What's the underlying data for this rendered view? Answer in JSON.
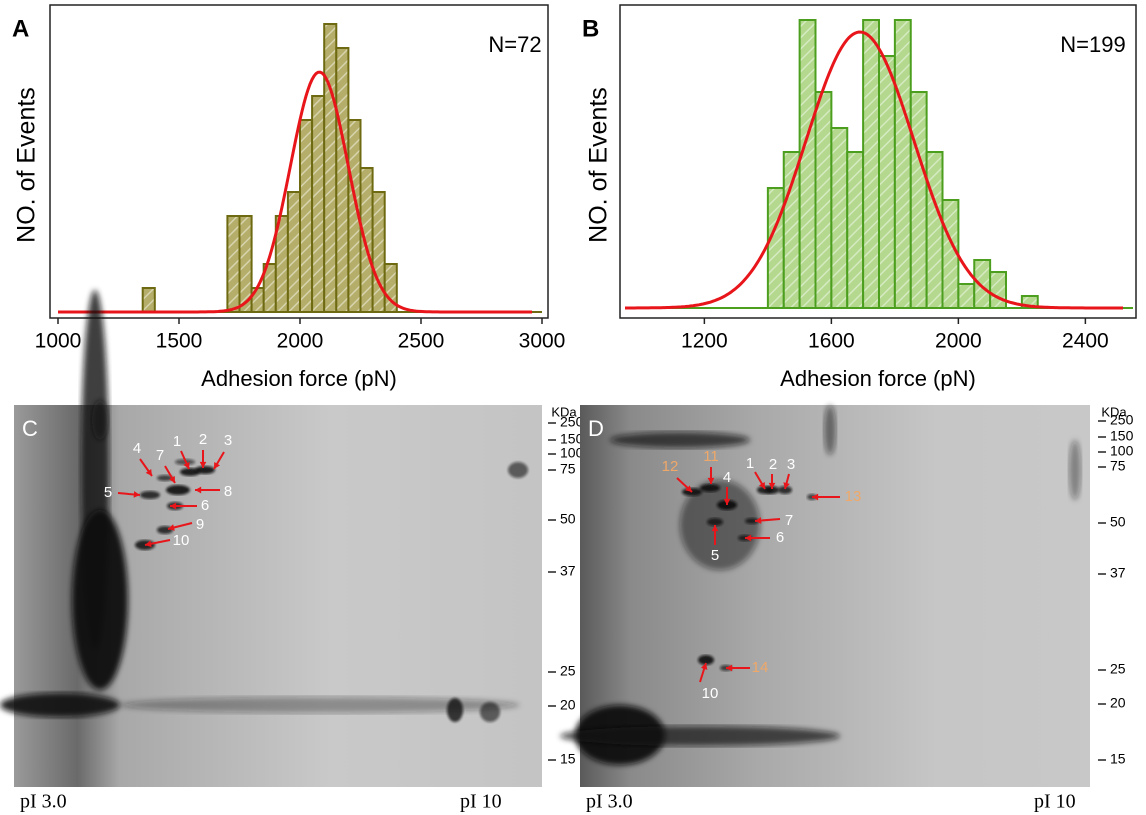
{
  "chart_data": [
    {
      "type": "histogram",
      "panel": "A",
      "annotation": "N=72",
      "x_label": "Adhesion force (pN)",
      "y_label": "NO. of Events",
      "bins": [
        1350,
        1400,
        1450,
        1500,
        1550,
        1600,
        1650,
        1700,
        1750,
        1800,
        1850,
        1900,
        1950,
        2000,
        2050,
        2100,
        2150,
        2200,
        2250,
        2300,
        2350,
        2400
      ],
      "values": [
        1,
        0,
        0,
        0,
        0,
        0,
        0,
        4,
        4,
        1,
        2,
        4,
        5,
        8,
        9,
        12,
        11,
        8,
        6,
        5,
        2
      ],
      "color": "#b5ae6a",
      "edge_color": "#6e6a12",
      "fit_color": "#e8161b",
      "fit": {
        "mean": 2080,
        "sd": 120,
        "peak": 10
      },
      "xlim": [
        1000,
        3000
      ],
      "xticks": [
        1000,
        1500,
        2000,
        2500,
        3000
      ],
      "ylim": [
        0,
        12.5
      ]
    },
    {
      "type": "histogram",
      "panel": "B",
      "annotation": "N=199",
      "x_label": "Adhesion force (pN)",
      "y_label": "NO. of Events",
      "bins": [
        1400,
        1450,
        1500,
        1550,
        1600,
        1650,
        1700,
        1750,
        1800,
        1850,
        1900,
        1950,
        2000,
        2050,
        2100,
        2150,
        2200,
        2250
      ],
      "values": [
        10,
        13,
        24,
        18,
        15,
        13,
        24,
        21,
        24,
        18,
        13,
        9,
        2,
        4,
        3,
        0,
        1
      ],
      "color": "#b3d88e",
      "edge_color": "#4b9e1e",
      "fit_color": "#e8161b",
      "fit": {
        "mean": 1690,
        "sd": 170,
        "peak": 23
      },
      "xlim": [
        950,
        2550
      ],
      "xticks": [
        1200,
        1600,
        2000,
        2400
      ],
      "ylim": [
        0,
        25
      ]
    }
  ],
  "gels": [
    {
      "panel": "C",
      "unit": "KDa",
      "markers": [
        250,
        150,
        100,
        75,
        50,
        37,
        25,
        20,
        15
      ],
      "spots": [
        "1",
        "2",
        "3",
        "4",
        "7",
        "5",
        "8",
        "6",
        "9",
        "10"
      ],
      "pi_left": "pI 3.0",
      "pi_right": "pI 10"
    },
    {
      "panel": "D",
      "unit": "KDa",
      "markers": [
        250,
        150,
        100,
        75,
        50,
        37,
        25,
        20,
        15
      ],
      "spots": [
        "1",
        "2",
        "3",
        "4",
        "5",
        "6",
        "7",
        "10",
        "11",
        "12",
        "13",
        "14"
      ],
      "pi_left": "pI 3.0",
      "pi_right": "pI 10"
    }
  ]
}
